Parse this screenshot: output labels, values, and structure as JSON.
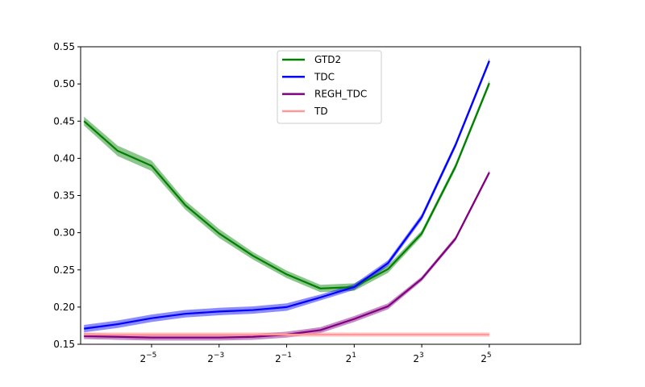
{
  "chart_data": {
    "type": "line",
    "title": "",
    "xlabel": "",
    "ylabel": "",
    "xscale": "log2",
    "xlim_exponent": [
      -7.1,
      7.7
    ],
    "ylim": [
      0.15,
      0.55
    ],
    "grid": false,
    "legend_position": "top-center",
    "x": [
      0.0078125,
      0.015625,
      0.03125,
      0.0625,
      0.125,
      0.25,
      0.5,
      1,
      2,
      4,
      8,
      16,
      32,
      64,
      128
    ],
    "x_exponents": [
      -7,
      -6,
      -5,
      -4,
      -3,
      -2,
      -1,
      0,
      1,
      2,
      3,
      4,
      5,
      6,
      7
    ],
    "xticks": [
      {
        "value": 0.03125,
        "base": "2",
        "exp": "−5"
      },
      {
        "value": 0.125,
        "base": "2",
        "exp": "−3"
      },
      {
        "value": 0.5,
        "base": "2",
        "exp": "−1"
      },
      {
        "value": 2,
        "base": "2",
        "exp": "1"
      },
      {
        "value": 8,
        "base": "2",
        "exp": "3"
      },
      {
        "value": 32,
        "base": "2",
        "exp": "5"
      }
    ],
    "yticks": [
      "0.15",
      "0.20",
      "0.25",
      "0.30",
      "0.35",
      "0.40",
      "0.45",
      "0.50",
      "0.55"
    ],
    "series": [
      {
        "name": "GTD2",
        "color": "#008000",
        "band_color": "#008000",
        "values": [
          0.45,
          0.41,
          0.39,
          0.337,
          0.299,
          0.269,
          0.244,
          0.225,
          0.227,
          0.251,
          0.299,
          0.389,
          0.501,
          null,
          null
        ],
        "err": [
          0.006,
          0.007,
          0.007,
          0.006,
          0.006,
          0.005,
          0.005,
          0.005,
          0.005,
          0.005,
          0.004,
          0.004,
          0.004,
          null,
          null
        ]
      },
      {
        "name": "TDC",
        "color": "#0000ff",
        "band_color": "#0000ff",
        "values": [
          0.171,
          0.177,
          0.185,
          0.191,
          0.194,
          0.196,
          0.2,
          0.213,
          0.227,
          0.259,
          0.321,
          0.418,
          0.531,
          null,
          null
        ],
        "err": [
          0.005,
          0.005,
          0.005,
          0.005,
          0.005,
          0.005,
          0.005,
          0.004,
          0.004,
          0.004,
          0.004,
          0.004,
          0.004,
          null,
          null
        ]
      },
      {
        "name": "REGH_TDC",
        "color": "#800080",
        "band_color": "#800080",
        "values": [
          0.161,
          0.16,
          0.159,
          0.159,
          0.159,
          0.16,
          0.163,
          0.169,
          0.184,
          0.201,
          0.238,
          0.292,
          0.381,
          null,
          null
        ],
        "err": [
          0.004,
          0.004,
          0.004,
          0.004,
          0.004,
          0.004,
          0.004,
          0.004,
          0.004,
          0.004,
          0.003,
          0.003,
          0.003,
          null,
          null
        ]
      },
      {
        "name": "TD",
        "color": "#ff9999",
        "band_color": "#ff9999",
        "values": [
          0.163,
          0.163,
          0.163,
          0.163,
          0.163,
          0.163,
          0.163,
          0.163,
          0.163,
          0.163,
          0.163,
          0.163,
          0.163,
          null,
          null
        ],
        "err": [
          0.003,
          0.003,
          0.003,
          0.003,
          0.003,
          0.003,
          0.003,
          0.003,
          0.003,
          0.003,
          0.003,
          0.003,
          0.003,
          null,
          null
        ]
      }
    ]
  }
}
